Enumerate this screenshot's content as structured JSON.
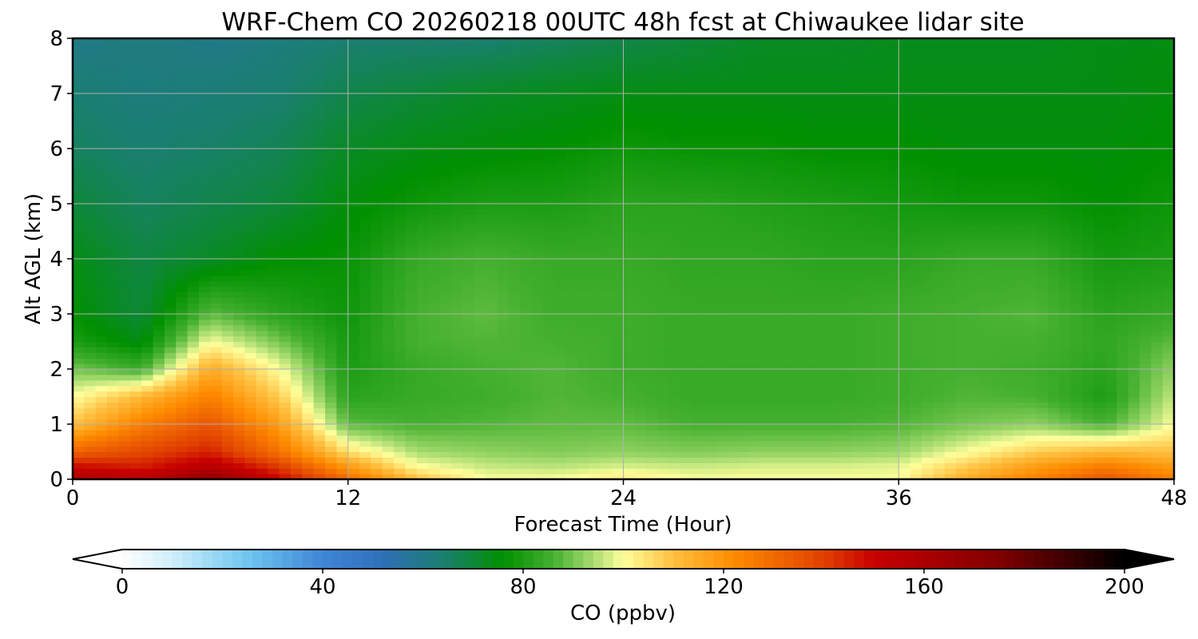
{
  "chart_data": {
    "type": "heatmap",
    "title": "WRF-Chem CO  20260218 00UTC 48h fcst at Chiwaukee lidar site",
    "xlabel": "Forecast Time (Hour)",
    "ylabel": "Alt AGL (km)",
    "xlim": [
      0,
      48
    ],
    "ylim": [
      0,
      8
    ],
    "xticks": [
      "0",
      "12",
      "24",
      "36",
      "48"
    ],
    "yticks": [
      "0",
      "1",
      "2",
      "3",
      "4",
      "5",
      "6",
      "7",
      "8"
    ],
    "grid": true,
    "colorbar": {
      "label": "CO  (ppbv)",
      "range": [
        0,
        200
      ],
      "ticks": [
        "0",
        "40",
        "80",
        "120",
        "160",
        "200"
      ],
      "extend": "both",
      "stops": [
        {
          "v": 0,
          "c": "#ffffff"
        },
        {
          "v": 10,
          "c": "#cfeefb"
        },
        {
          "v": 25,
          "c": "#6fc6f0"
        },
        {
          "v": 40,
          "c": "#3f86d6"
        },
        {
          "v": 52,
          "c": "#2f6fb8"
        },
        {
          "v": 64,
          "c": "#1a7f70"
        },
        {
          "v": 76,
          "c": "#009000"
        },
        {
          "v": 86,
          "c": "#45b030"
        },
        {
          "v": 94,
          "c": "#a8dc70"
        },
        {
          "v": 100,
          "c": "#ffff9c"
        },
        {
          "v": 110,
          "c": "#ffc040"
        },
        {
          "v": 122,
          "c": "#ff8c00"
        },
        {
          "v": 140,
          "c": "#e04000"
        },
        {
          "v": 150,
          "c": "#c80000"
        },
        {
          "v": 175,
          "c": "#800000"
        },
        {
          "v": 200,
          "c": "#000000"
        }
      ]
    },
    "time_hours": [
      0,
      3,
      6,
      9,
      12,
      15,
      18,
      21,
      24,
      27,
      30,
      33,
      36,
      39,
      42,
      45,
      48
    ],
    "altitudes_km": [
      0,
      0.25,
      0.5,
      1,
      1.5,
      2,
      2.5,
      3,
      4,
      5,
      6,
      7,
      8
    ],
    "co_ppbv": [
      [
        160,
        155,
        170,
        150,
        130,
        110,
        100,
        100,
        103,
        100,
        100,
        100,
        100,
        115,
        125,
        135,
        125
      ],
      [
        148,
        145,
        155,
        140,
        118,
        100,
        96,
        95,
        97,
        96,
        97,
        97,
        98,
        108,
        118,
        125,
        118
      ],
      [
        132,
        138,
        145,
        128,
        105,
        94,
        92,
        91,
        92,
        91,
        92,
        92,
        93,
        100,
        108,
        112,
        110
      ],
      [
        110,
        125,
        135,
        118,
        88,
        86,
        87,
        88,
        88,
        86,
        86,
        86,
        87,
        90,
        92,
        86,
        100
      ],
      [
        100,
        112,
        125,
        108,
        82,
        84,
        85,
        87,
        86,
        84,
        84,
        84,
        85,
        87,
        86,
        80,
        96
      ],
      [
        90,
        85,
        115,
        100,
        80,
        84,
        86,
        87,
        85,
        84,
        84,
        84,
        85,
        86,
        85,
        82,
        92
      ],
      [
        80,
        74,
        100,
        90,
        79,
        86,
        87,
        86,
        85,
        84,
        84,
        84,
        85,
        86,
        86,
        83,
        88
      ],
      [
        76,
        70,
        88,
        82,
        78,
        86,
        88,
        85,
        85,
        84,
        84,
        84,
        85,
        86,
        87,
        82,
        84
      ],
      [
        74,
        69,
        72,
        76,
        77,
        84,
        86,
        84,
        84,
        83,
        83,
        82,
        82,
        84,
        84,
        79,
        80
      ],
      [
        70,
        66,
        68,
        70,
        75,
        78,
        80,
        80,
        82,
        82,
        81,
        80,
        79,
        78,
        78,
        76,
        78
      ],
      [
        66,
        64,
        65,
        67,
        72,
        74,
        75,
        76,
        78,
        77,
        77,
        76,
        76,
        75,
        75,
        75,
        76
      ],
      [
        64,
        62,
        63,
        64,
        68,
        70,
        72,
        73,
        74,
        74,
        74,
        74,
        74,
        74,
        74,
        74,
        75
      ],
      [
        60,
        62,
        60,
        62,
        64,
        64,
        64,
        66,
        68,
        70,
        72,
        72,
        73,
        73,
        73,
        74,
        74
      ]
    ]
  }
}
